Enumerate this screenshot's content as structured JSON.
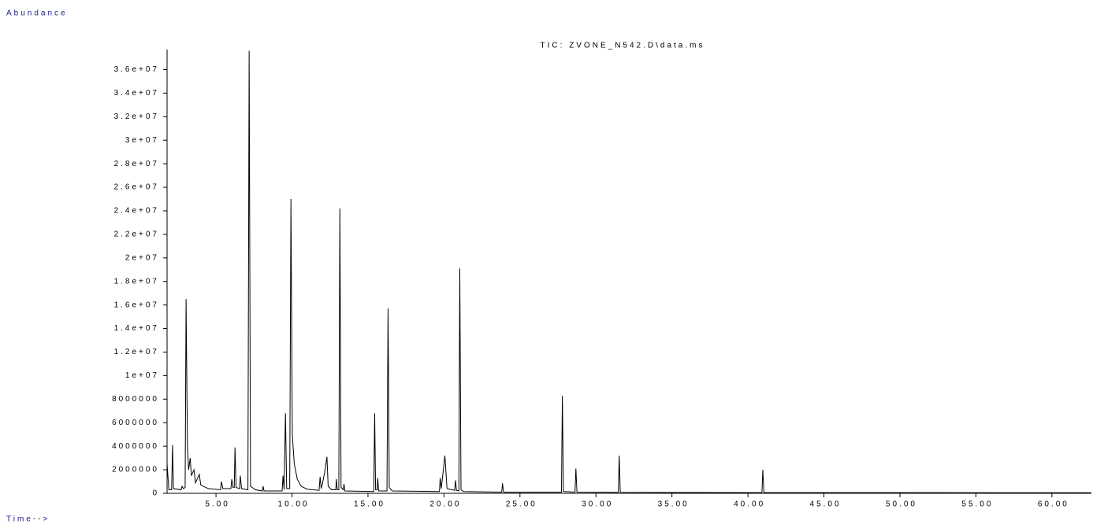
{
  "chart_data": {
    "type": "line",
    "title": "TIC: ZVONE_N542.D\\data.ms",
    "y_label": "Abundance",
    "x_label": "Time-->",
    "color": "#000000",
    "xlim": [
      1.78,
      62.6
    ],
    "ylim": [
      0,
      37700000
    ],
    "xticks": [
      {
        "value": 5,
        "label": "5.00"
      },
      {
        "value": 10,
        "label": "10.00"
      },
      {
        "value": 15,
        "label": "15.00"
      },
      {
        "value": 20,
        "label": "20.00"
      },
      {
        "value": 25,
        "label": "25.00"
      },
      {
        "value": 30,
        "label": "30.00"
      },
      {
        "value": 35,
        "label": "35.00"
      },
      {
        "value": 40,
        "label": "40.00"
      },
      {
        "value": 45,
        "label": "45.00"
      },
      {
        "value": 50,
        "label": "50.00"
      },
      {
        "value": 55,
        "label": "55.00"
      },
      {
        "value": 60,
        "label": "60.00"
      }
    ],
    "yticks": [
      0,
      2000000,
      4000000,
      6000000,
      8000000,
      {
        "value": 10000000,
        "label": "1e+07"
      },
      {
        "value": 12000000,
        "label": "1.2e+07"
      },
      {
        "value": 14000000,
        "label": "1.4e+07"
      },
      {
        "value": 16000000,
        "label": "1.6e+07"
      },
      {
        "value": 18000000,
        "label": "1.8e+07"
      },
      {
        "value": 20000000,
        "label": "2e+07"
      },
      {
        "value": 22000000,
        "label": "2.2e+07"
      },
      {
        "value": 24000000,
        "label": "2.4e+07"
      },
      {
        "value": 26000000,
        "label": "2.6e+07"
      },
      {
        "value": 28000000,
        "label": "2.8e+07"
      },
      {
        "value": 30000000,
        "label": "3e+07"
      },
      {
        "value": 32000000,
        "label": "3.2e+07"
      },
      {
        "value": 34000000,
        "label": "3.4e+07"
      },
      {
        "value": 36000000,
        "label": "3.6e+07"
      }
    ],
    "x": [
      1.78,
      1.9,
      2.08,
      2.14,
      2.2,
      2.7,
      2.77,
      2.85,
      2.97,
      3.03,
      3.12,
      3.2,
      3.3,
      3.38,
      3.55,
      3.65,
      3.9,
      4.0,
      4.5,
      5.3,
      5.36,
      5.45,
      5.98,
      6.04,
      6.12,
      6.2,
      6.25,
      6.32,
      6.55,
      6.6,
      6.68,
      7.1,
      7.18,
      7.27,
      7.6,
      8.05,
      8.1,
      8.16,
      9.35,
      9.41,
      9.48,
      9.57,
      9.65,
      9.85,
      9.93,
      10.02,
      10.15,
      10.35,
      10.6,
      11.0,
      11.78,
      11.85,
      11.92,
      12.0,
      12.15,
      12.3,
      12.38,
      12.6,
      12.88,
      12.92,
      12.98,
      13.08,
      13.15,
      13.23,
      13.38,
      13.42,
      13.48,
      15.38,
      15.44,
      15.5,
      15.6,
      15.64,
      15.7,
      16.25,
      16.32,
      16.4,
      16.6,
      19.7,
      19.75,
      19.82,
      20.06,
      20.2,
      20.7,
      20.76,
      20.82,
      20.98,
      21.04,
      21.12,
      21.3,
      23.8,
      23.85,
      23.92,
      27.73,
      27.79,
      27.86,
      28.62,
      28.68,
      28.75,
      31.47,
      31.53,
      31.6,
      40.92,
      40.98,
      41.05,
      62.6
    ],
    "y": [
      2500000,
      300000,
      300000,
      4100000,
      400000,
      300000,
      600000,
      400000,
      500000,
      16500000,
      4000000,
      2000000,
      3000000,
      1500000,
      2000000,
      900000,
      1600000,
      700000,
      400000,
      300000,
      1000000,
      400000,
      400000,
      1200000,
      500000,
      500000,
      3900000,
      500000,
      400000,
      1500000,
      400000,
      300000,
      37600000,
      600000,
      300000,
      200000,
      600000,
      200000,
      200000,
      1500000,
      300000,
      6800000,
      400000,
      400000,
      25000000,
      5000000,
      2500000,
      1200000,
      600000,
      350000,
      250000,
      1400000,
      400000,
      800000,
      1800000,
      3100000,
      600000,
      300000,
      300000,
      1200000,
      300000,
      300000,
      24200000,
      500000,
      300000,
      800000,
      200000,
      150000,
      6800000,
      300000,
      300000,
      1300000,
      200000,
      200000,
      15700000,
      500000,
      200000,
      150000,
      1300000,
      400000,
      3200000,
      400000,
      250000,
      1100000,
      250000,
      200000,
      19100000,
      300000,
      150000,
      100000,
      850000,
      100000,
      100000,
      8300000,
      150000,
      100000,
      2100000,
      100000,
      80000,
      3200000,
      80000,
      60000,
      2000000,
      60000,
      50000
    ]
  }
}
